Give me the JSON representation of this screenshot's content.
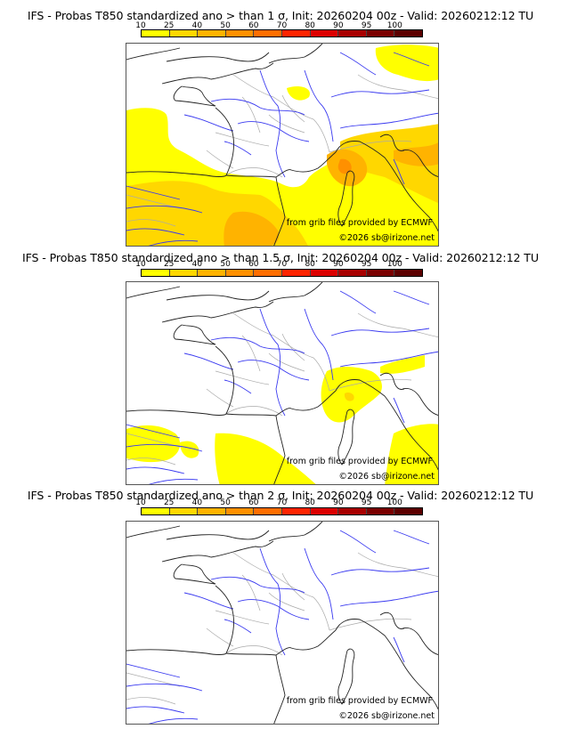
{
  "colorbar": {
    "ticks": [
      "10",
      "25",
      "40",
      "50",
      "60",
      "70",
      "80",
      "90",
      "95",
      "100"
    ],
    "colors": [
      "#ffff00",
      "#ffd700",
      "#ffb300",
      "#ff9000",
      "#ff6e00",
      "#ff2400",
      "#dc0000",
      "#a80000",
      "#7a0000",
      "#5c0000"
    ]
  },
  "panels": [
    {
      "title": "IFS - Probas T850  standardized ano > than 1 σ, Init: 20260204 00z - Valid: 20260212:12 TU",
      "threshold": "1 σ",
      "credit_source": "from grib files provided by ECMWF",
      "credit_copyright": "©2026 sb@irizone.net"
    },
    {
      "title": "IFS - Probas T850  standardized ano > than 1.5 σ, Init: 20260204 00z - Valid: 20260212:12 TU",
      "threshold": "1.5 σ",
      "credit_source": "from grib files provided by ECMWF",
      "credit_copyright": "©2026 sb@irizone.net"
    },
    {
      "title": "IFS - Probas T850  standardized ano > than 2 σ, Init: 20260204 00z - Valid: 20260212:12 TU",
      "threshold": "2 σ",
      "credit_source": "from grib files provided by ECMWF",
      "credit_copyright": "©2026 sb@irizone.net"
    }
  ],
  "map_colors": {
    "coast": "#222222",
    "rivers": "#3a3af0",
    "borders": "#aaaaaa"
  }
}
